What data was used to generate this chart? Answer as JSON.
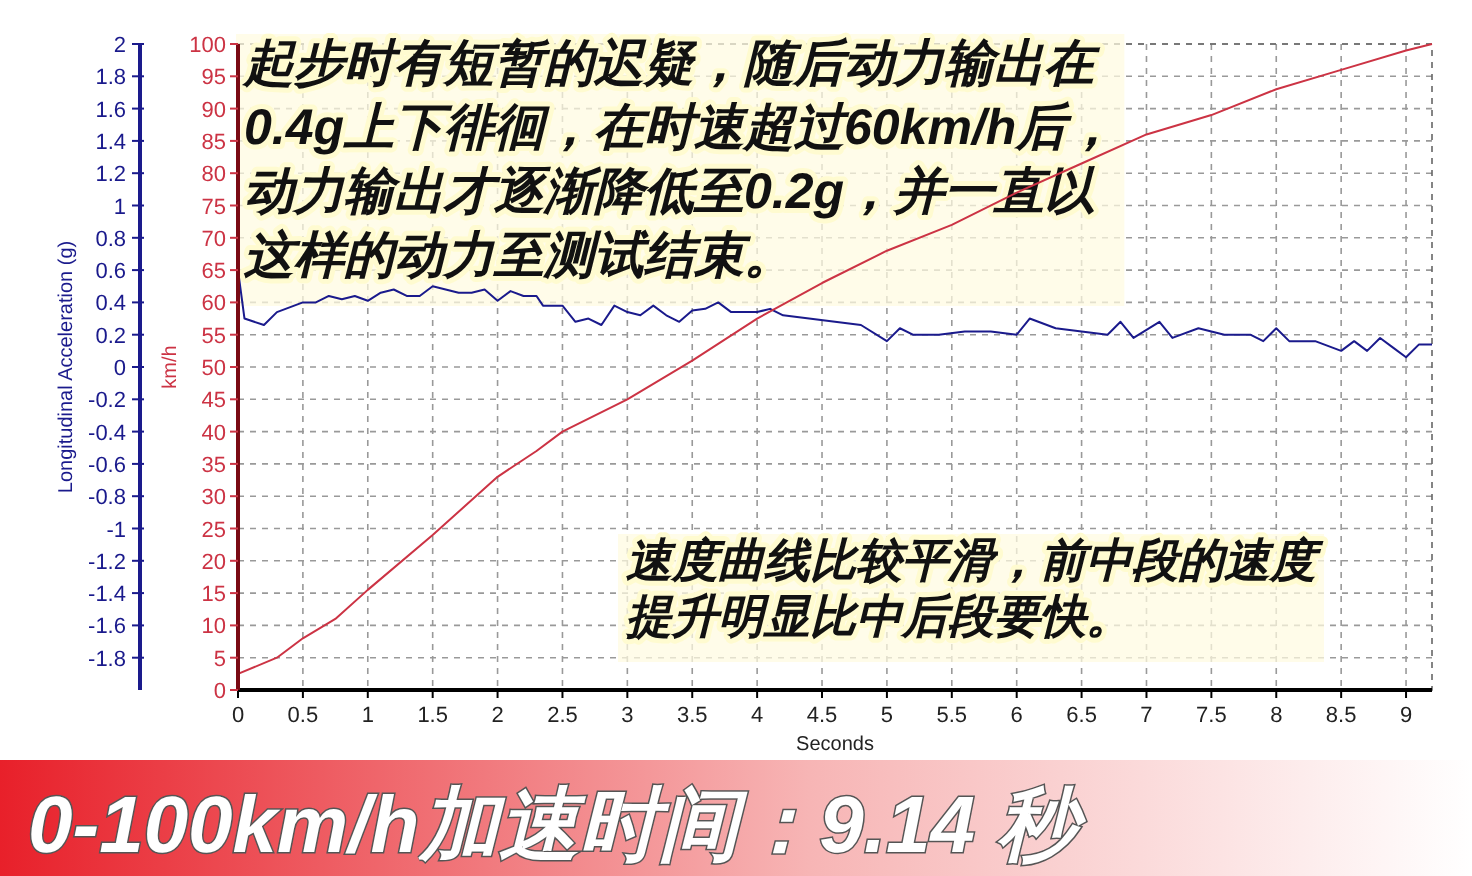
{
  "chart_data": {
    "type": "line",
    "title": "0-100km/h加速时间：9.14 秒",
    "xlabel": "Seconds",
    "ylabel": "Longitudinal Acceleration (g)",
    "y2label": "km/h",
    "annotations": [
      "起步时有短暂的迟疑，随后动力输出在0.4g上下徘徊，在时速超过60km/h后，动力输出才逐渐降低至0.2g，并一直以这样的动力至测试结束。",
      "速度曲线比较平滑，前中段的速度提升明显比中后段要快。"
    ],
    "xlim": [
      0,
      9.2
    ],
    "xticks": [
      0,
      0.5,
      1,
      1.5,
      2,
      2.5,
      3,
      3.5,
      4,
      4.5,
      5,
      5.5,
      6,
      6.5,
      7,
      7.5,
      8,
      8.5,
      9
    ],
    "ylim": [
      -2,
      2
    ],
    "yticks": [
      -1.8,
      -1.6,
      -1.4,
      -1.2,
      -1,
      -0.8,
      -0.6,
      -0.4,
      -0.2,
      0,
      0.2,
      0.4,
      0.6,
      0.8,
      1,
      1.2,
      1.4,
      1.6,
      1.8,
      2
    ],
    "y2lim": [
      0,
      100
    ],
    "y2ticks": [
      0,
      5,
      10,
      15,
      20,
      25,
      30,
      35,
      40,
      45,
      50,
      55,
      60,
      65,
      70,
      75,
      80,
      85,
      90,
      95,
      100
    ],
    "grid": true,
    "line_style": "solid",
    "series": [
      {
        "color": "#1a1a8c",
        "x": [
          0,
          0.05,
          0.2,
          0.3,
          0.5,
          0.6,
          0.7,
          0.8,
          0.9,
          1,
          1.1,
          1.2,
          1.3,
          1.4,
          1.5,
          1.6,
          1.7,
          1.8,
          1.9,
          2,
          2.1,
          2.2,
          2.3,
          2.35,
          2.45,
          2.5,
          2.6,
          2.7,
          2.8,
          2.9,
          3,
          3.1,
          3.2,
          3.3,
          3.4,
          3.5,
          3.6,
          3.7,
          3.8,
          4,
          4.1,
          4.2,
          4.4,
          4.6,
          4.8,
          5,
          5.1,
          5.2,
          5.4,
          5.6,
          5.8,
          6,
          6.1,
          6.3,
          6.5,
          6.7,
          6.8,
          6.9,
          7.1,
          7.2,
          7.4,
          7.6,
          7.8,
          7.9,
          8,
          8.1,
          8.3,
          8.5,
          8.6,
          8.7,
          8.8,
          8.9,
          9,
          9.1,
          9.2
        ],
        "values": [
          0.6,
          0.3,
          0.26,
          0.34,
          0.4,
          0.4,
          0.44,
          0.42,
          0.44,
          0.41,
          0.46,
          0.48,
          0.44,
          0.44,
          0.5,
          0.48,
          0.46,
          0.46,
          0.48,
          0.41,
          0.47,
          0.44,
          0.44,
          0.38,
          0.38,
          0.38,
          0.28,
          0.3,
          0.26,
          0.38,
          0.34,
          0.32,
          0.38,
          0.32,
          0.28,
          0.35,
          0.36,
          0.4,
          0.34,
          0.34,
          0.36,
          0.32,
          0.3,
          0.28,
          0.26,
          0.16,
          0.24,
          0.2,
          0.2,
          0.22,
          0.22,
          0.2,
          0.3,
          0.24,
          0.22,
          0.2,
          0.28,
          0.18,
          0.28,
          0.18,
          0.24,
          0.2,
          0.2,
          0.16,
          0.24,
          0.16,
          0.16,
          0.1,
          0.16,
          0.1,
          0.18,
          0.12,
          0.06,
          0.14,
          0.14
        ]
      },
      {
        "color": "#cc3344",
        "axis": "y2",
        "x": [
          0,
          0.3,
          0.5,
          0.75,
          1,
          1.5,
          2,
          2.3,
          2.5,
          3,
          3.5,
          4,
          4.5,
          5,
          5.5,
          6,
          6.5,
          7,
          7.5,
          8,
          8.5,
          9,
          9.2
        ],
        "values": [
          2.5,
          5,
          8,
          11,
          15.5,
          24,
          33,
          37,
          40,
          45,
          51,
          57.5,
          63,
          68,
          72,
          77,
          81.5,
          86,
          89,
          93,
          96,
          99,
          100
        ]
      }
    ]
  }
}
